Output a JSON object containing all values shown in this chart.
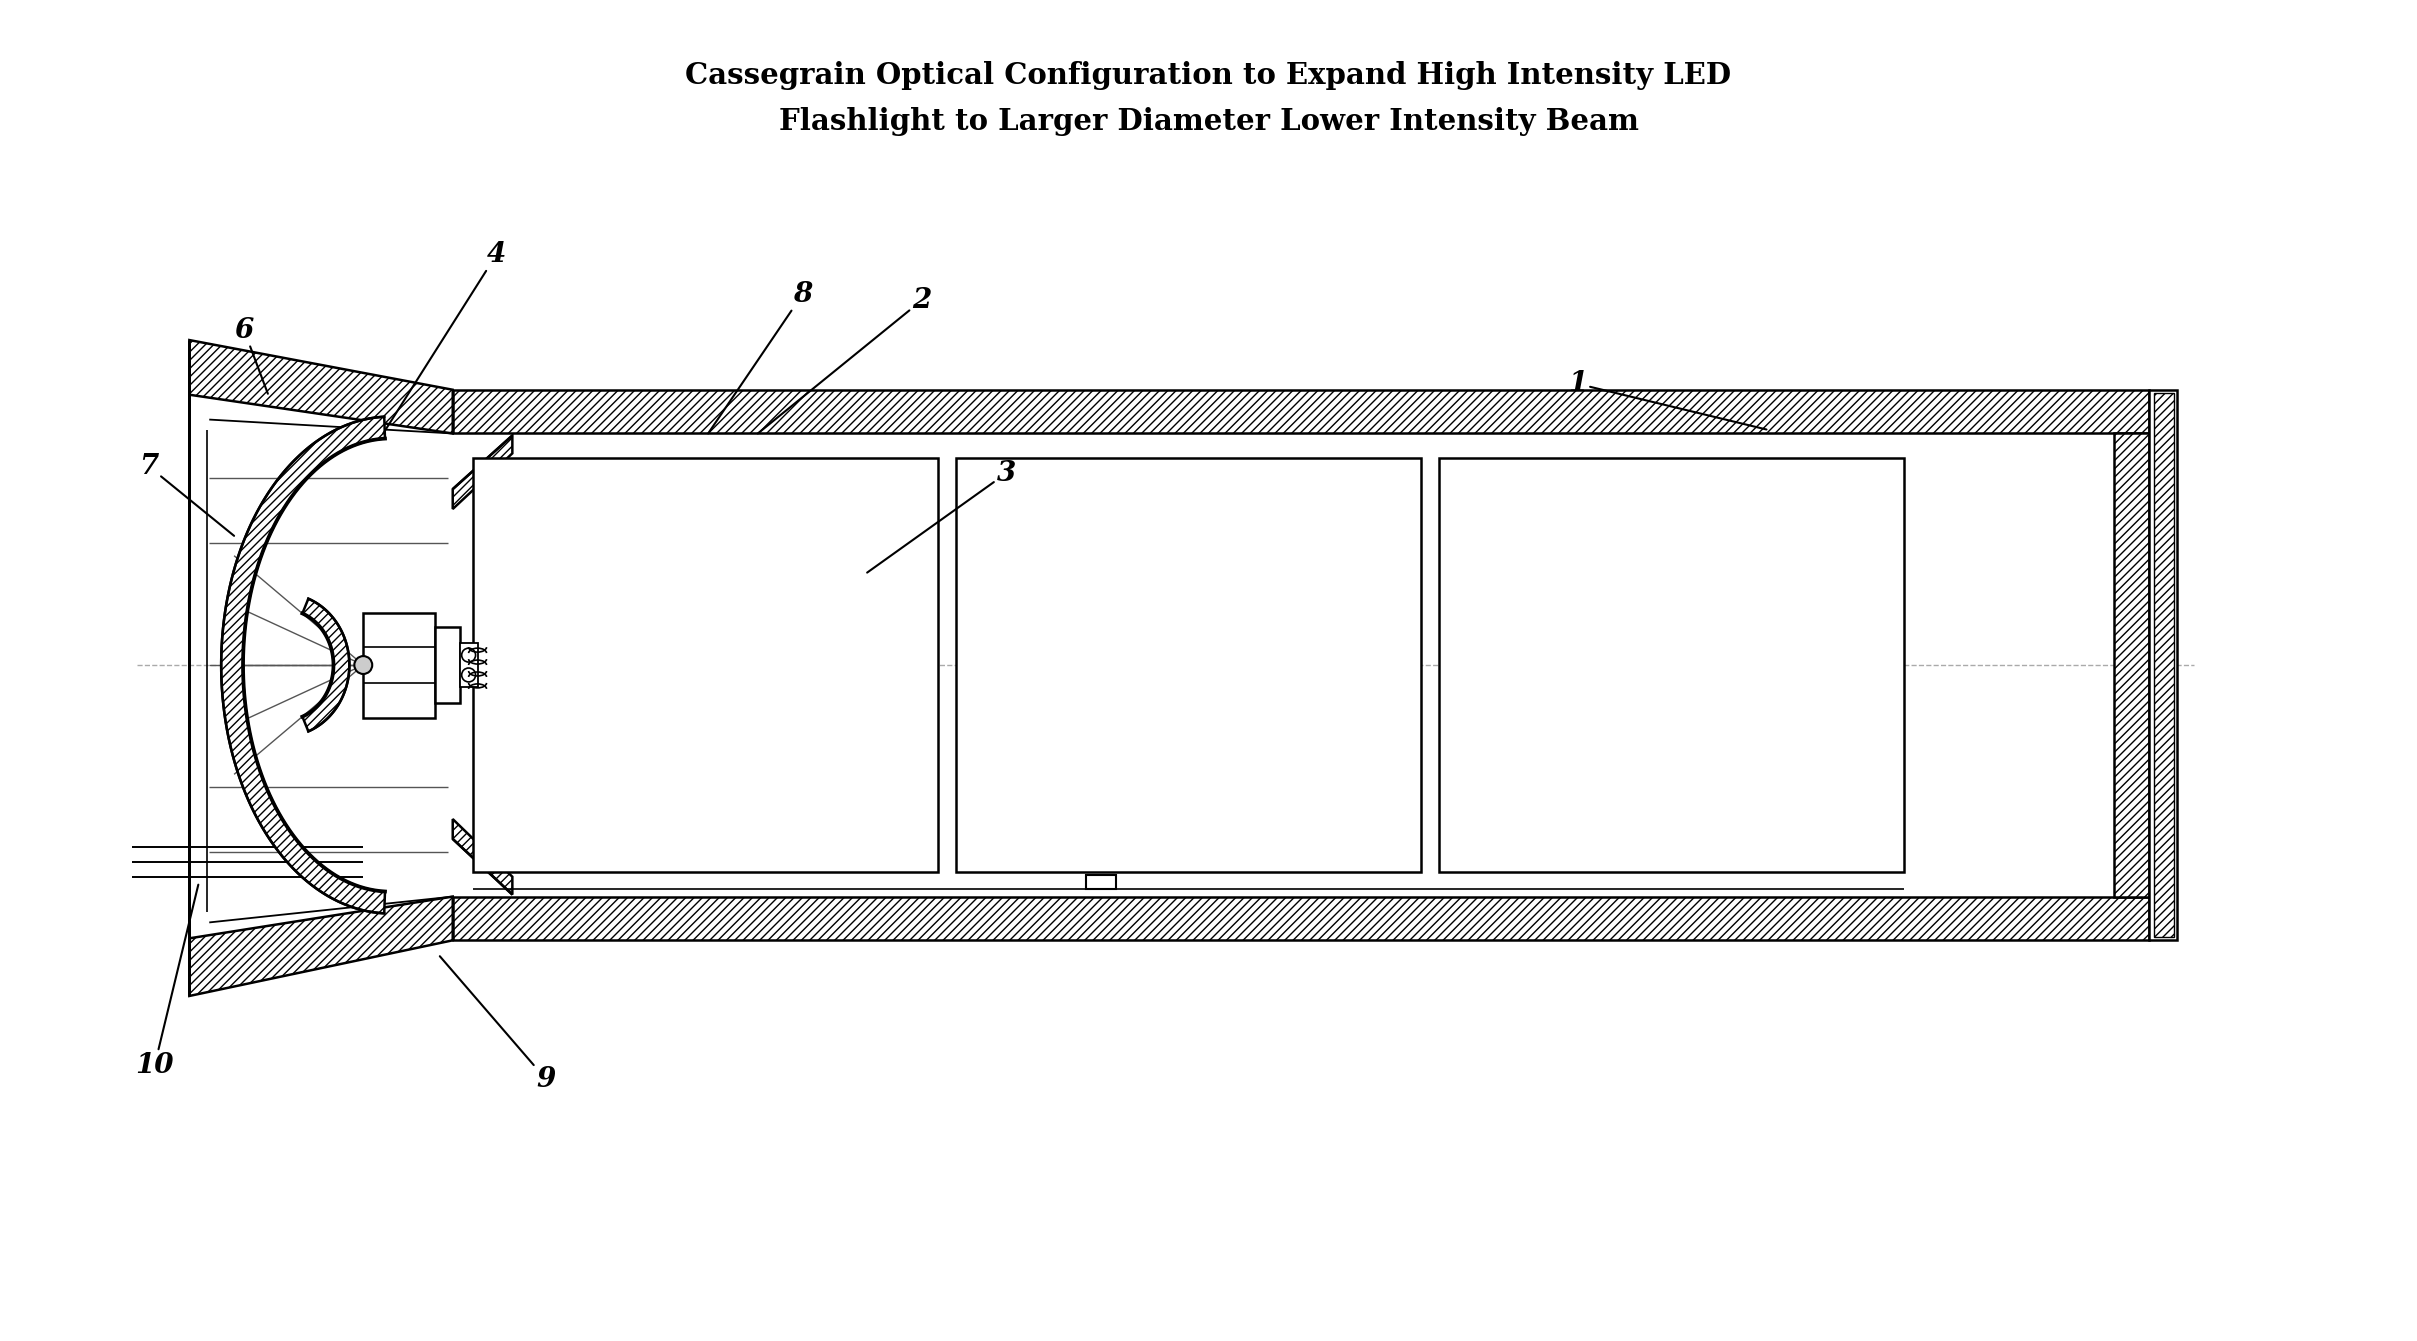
{
  "title_line1": "Cassegrain Optical Configuration to Expand High Intensity LED",
  "title_line2": "Flashlight to Larger Diameter Lower Intensity Beam",
  "title_fontsize": 21,
  "bg_color": "#ffffff",
  "line_color": "#000000",
  "figsize": [
    24.17,
    13.41
  ],
  "dpi": 100,
  "label_fontsize": 20,
  "lw": 1.8
}
